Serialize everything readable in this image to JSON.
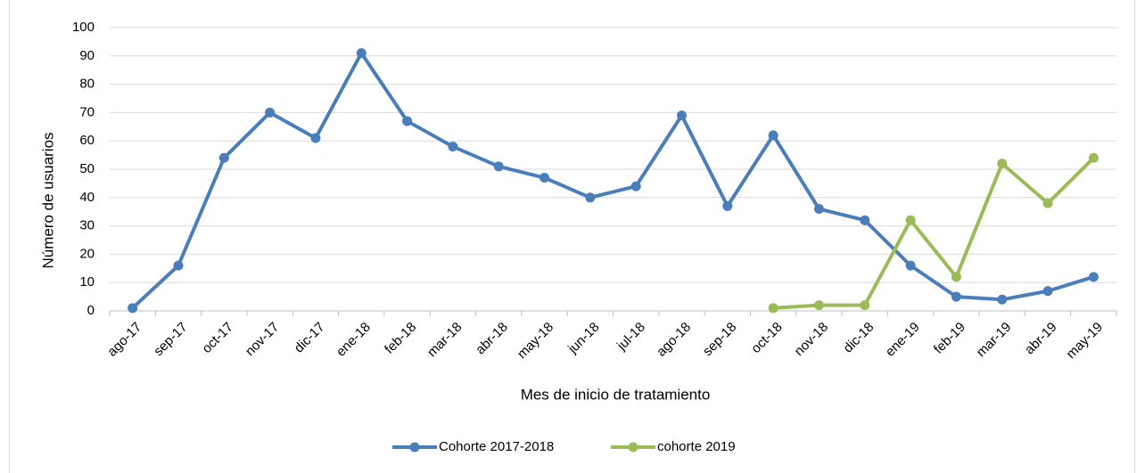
{
  "chart_data": {
    "type": "line",
    "x_label": "Mes de inicio de tratamiento",
    "y_label": "Número de usuarios",
    "categories": [
      "ago-17",
      "sep-17",
      "oct-17",
      "nov-17",
      "dic-17",
      "ene-18",
      "feb-18",
      "mar-18",
      "abr-18",
      "may-18",
      "jun-18",
      "jul-18",
      "ago-18",
      "sep-18",
      "oct-18",
      "nov-18",
      "dic-18",
      "ene-19",
      "feb-19",
      "mar-19",
      "abr-19",
      "may-19"
    ],
    "series": [
      {
        "name": "Cohorte 2017-2018",
        "color": "#4a7ebb",
        "values": [
          1,
          16,
          54,
          70,
          61,
          91,
          67,
          58,
          51,
          47,
          40,
          44,
          69,
          37,
          62,
          36,
          32,
          16,
          5,
          4,
          7,
          12
        ]
      },
      {
        "name": "cohorte 2019",
        "color": "#9bbb59",
        "values": [
          null,
          null,
          null,
          null,
          null,
          null,
          null,
          null,
          null,
          null,
          null,
          null,
          null,
          null,
          1,
          2,
          2,
          32,
          12,
          52,
          38,
          54
        ]
      }
    ],
    "ylim": [
      0,
      100
    ],
    "yticks": [
      0,
      10,
      20,
      30,
      40,
      50,
      60,
      70,
      80,
      90,
      100
    ],
    "grid": true,
    "legend": "bottom"
  }
}
